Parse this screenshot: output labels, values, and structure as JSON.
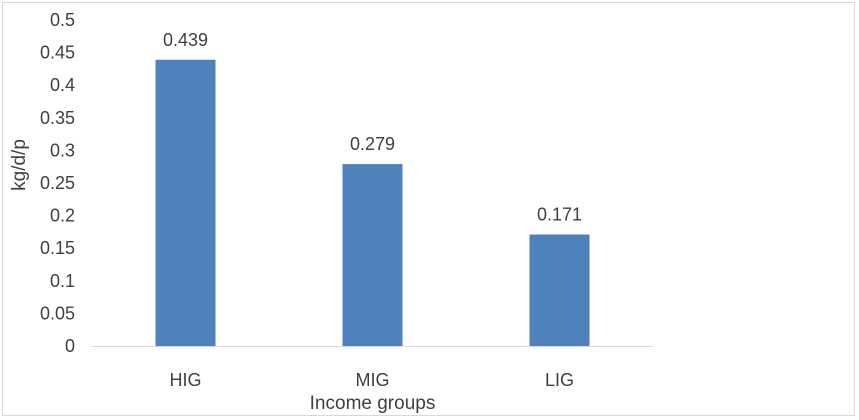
{
  "chart_data": {
    "type": "bar",
    "categories": [
      "HIG",
      "MIG",
      "LIG"
    ],
    "values": [
      0.439,
      0.279,
      0.171
    ],
    "data_labels": [
      "0.439",
      "0.279",
      "0.171"
    ],
    "title": "",
    "xlabel": "Income groups",
    "ylabel": "kg/d/p",
    "ylim": [
      0,
      0.5
    ],
    "yticks": [
      "0",
      "0.05",
      "0.1",
      "0.15",
      "0.2",
      "0.25",
      "0.3",
      "0.35",
      "0.4",
      "0.45",
      "0.5"
    ],
    "grid": false,
    "legend": "none",
    "bar_color": "#4f81bd",
    "axis_color": "#d9d9d9",
    "text_color": "#404040"
  }
}
